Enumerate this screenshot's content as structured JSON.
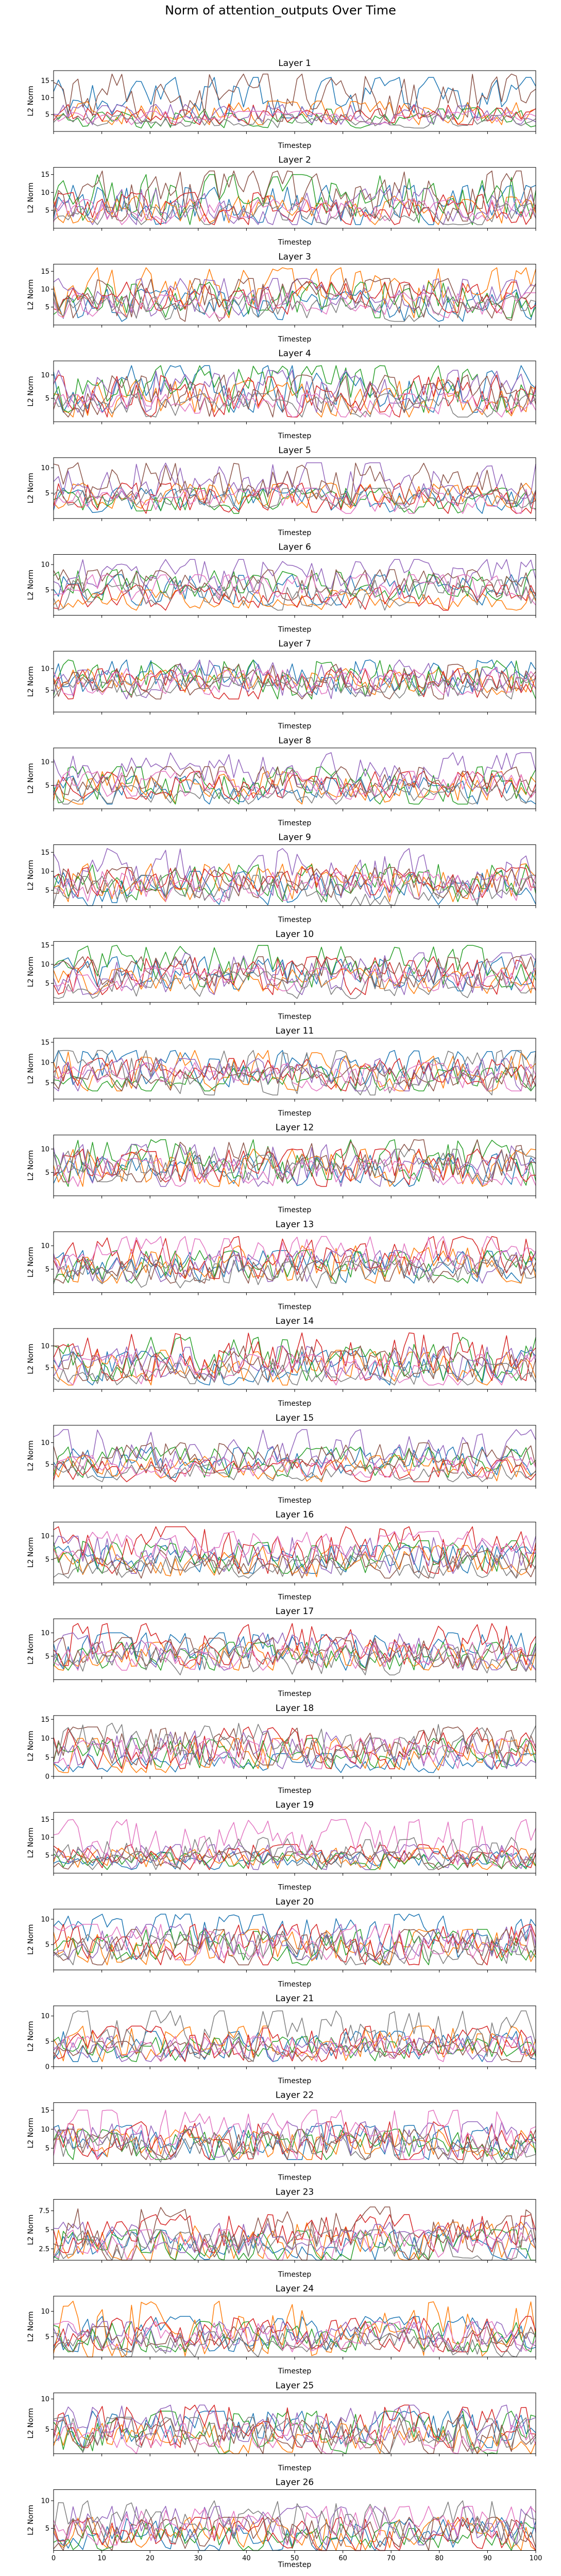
{
  "title": "Norm of attention_outputs Over Time",
  "xlabel": "Timestep",
  "ylabel": "L2 Norm",
  "xticks": [
    0,
    10,
    20,
    30,
    40,
    50,
    60,
    70,
    80,
    90,
    100
  ],
  "colors": [
    "#1f77b4",
    "#ff7f0e",
    "#2ca02c",
    "#d62728",
    "#9467bd",
    "#8c564b",
    "#e377c2",
    "#7f7f7f"
  ],
  "chart_data": [
    {
      "type": "line",
      "title": "Layer 1",
      "xlabel": "Timestep",
      "ylabel": "L2 Norm",
      "xlim": [
        0,
        100
      ],
      "ylim": [
        0,
        18
      ],
      "yticks": [
        5,
        10,
        15
      ],
      "seed": 101,
      "ranges": [
        [
          4,
          16
        ],
        [
          2,
          9
        ],
        [
          1,
          7
        ],
        [
          2,
          8
        ],
        [
          2,
          8
        ],
        [
          3,
          17
        ],
        [
          2,
          6
        ],
        [
          1,
          5
        ]
      ]
    },
    {
      "type": "line",
      "title": "Layer 2",
      "xlabel": "Timestep",
      "ylabel": "L2 Norm",
      "xlim": [
        0,
        100
      ],
      "ylim": [
        0,
        17
      ],
      "yticks": [
        5,
        10,
        15
      ],
      "seed": 102,
      "ranges": [
        [
          1,
          12
        ],
        [
          1,
          9
        ],
        [
          1,
          15
        ],
        [
          1,
          10
        ],
        [
          1,
          11
        ],
        [
          2,
          16
        ],
        [
          1,
          8
        ],
        [
          1,
          7
        ]
      ]
    },
    {
      "type": "line",
      "title": "Layer 3",
      "xlabel": "Timestep",
      "ylabel": "L2 Norm",
      "xlim": [
        0,
        100
      ],
      "ylim": [
        0,
        17
      ],
      "yticks": [
        5,
        10,
        15
      ],
      "seed": 103,
      "ranges": [
        [
          1,
          10
        ],
        [
          2,
          16
        ],
        [
          2,
          12
        ],
        [
          3,
          12
        ],
        [
          2,
          13
        ],
        [
          1,
          13
        ],
        [
          2,
          9
        ],
        [
          1,
          8
        ]
      ]
    },
    {
      "type": "line",
      "title": "Layer 4",
      "xlabel": "Timestep",
      "ylabel": "L2 Norm",
      "xlim": [
        0,
        100
      ],
      "ylim": [
        0,
        13
      ],
      "yticks": [
        5,
        10
      ],
      "seed": 104,
      "ranges": [
        [
          2,
          12
        ],
        [
          1,
          9
        ],
        [
          2,
          12
        ],
        [
          1,
          10
        ],
        [
          2,
          11
        ],
        [
          1,
          10
        ],
        [
          1,
          6
        ],
        [
          1,
          6
        ]
      ]
    },
    {
      "type": "line",
      "title": "Layer 5",
      "xlabel": "Timestep",
      "ylabel": "L2 Norm",
      "xlim": [
        0,
        100
      ],
      "ylim": [
        0,
        12
      ],
      "yticks": [
        5,
        10
      ],
      "seed": 105,
      "ranges": [
        [
          1,
          6
        ],
        [
          2,
          7
        ],
        [
          1,
          6
        ],
        [
          1,
          7
        ],
        [
          4,
          11
        ],
        [
          3,
          11
        ],
        [
          1,
          6
        ],
        [
          2,
          6
        ]
      ]
    },
    {
      "type": "line",
      "title": "Layer 6",
      "xlabel": "Timestep",
      "ylabel": "L2 Norm",
      "xlim": [
        0,
        100
      ],
      "ylim": [
        0,
        12
      ],
      "yticks": [
        5,
        10
      ],
      "seed": 106,
      "ranges": [
        [
          2,
          8
        ],
        [
          1,
          5
        ],
        [
          3,
          9
        ],
        [
          1,
          6
        ],
        [
          4,
          11
        ],
        [
          3,
          9
        ],
        [
          2,
          8
        ],
        [
          1,
          7
        ]
      ]
    },
    {
      "type": "line",
      "title": "Layer 7",
      "xlabel": "Timestep",
      "ylabel": "L2 Norm",
      "xlim": [
        0,
        100
      ],
      "ylim": [
        0,
        14
      ],
      "yticks": [
        5,
        10
      ],
      "seed": 107,
      "ranges": [
        [
          4,
          12
        ],
        [
          4,
          10
        ],
        [
          3,
          12
        ],
        [
          3,
          10
        ],
        [
          3,
          12
        ],
        [
          3,
          11
        ],
        [
          4,
          10
        ],
        [
          3,
          8
        ]
      ]
    },
    {
      "type": "line",
      "title": "Layer 8",
      "xlabel": "Timestep",
      "ylabel": "L2 Norm",
      "xlim": [
        0,
        100
      ],
      "ylim": [
        0,
        13
      ],
      "yticks": [
        5,
        10
      ],
      "seed": 108,
      "ranges": [
        [
          1,
          7
        ],
        [
          1,
          8
        ],
        [
          1,
          9
        ],
        [
          2,
          8
        ],
        [
          4,
          12
        ],
        [
          3,
          9
        ],
        [
          2,
          8
        ],
        [
          1,
          5
        ]
      ]
    },
    {
      "type": "line",
      "title": "Layer 9",
      "xlabel": "Timestep",
      "ylabel": "L2 Norm",
      "xlim": [
        0,
        100
      ],
      "ylim": [
        1,
        17
      ],
      "yticks": [
        5,
        10,
        15
      ],
      "seed": 109,
      "ranges": [
        [
          1,
          10
        ],
        [
          2,
          12
        ],
        [
          2,
          12
        ],
        [
          3,
          11
        ],
        [
          3,
          16
        ],
        [
          3,
          11
        ],
        [
          2,
          10
        ],
        [
          1,
          9
        ]
      ]
    },
    {
      "type": "line",
      "title": "Layer 10",
      "xlabel": "Timestep",
      "ylabel": "L2 Norm",
      "xlim": [
        0,
        100
      ],
      "ylim": [
        0,
        16
      ],
      "yticks": [
        5,
        10,
        15
      ],
      "seed": 110,
      "ranges": [
        [
          3,
          12
        ],
        [
          2,
          9
        ],
        [
          4,
          15
        ],
        [
          2,
          12
        ],
        [
          2,
          13
        ],
        [
          4,
          12
        ],
        [
          3,
          9
        ],
        [
          1,
          8
        ]
      ]
    },
    {
      "type": "line",
      "title": "Layer 11",
      "xlabel": "Timestep",
      "ylabel": "L2 Norm",
      "xlim": [
        0,
        100
      ],
      "ylim": [
        1,
        16
      ],
      "yticks": [
        5,
        10,
        15
      ],
      "seed": 111,
      "ranges": [
        [
          4,
          13
        ],
        [
          3,
          13
        ],
        [
          3,
          9
        ],
        [
          3,
          11
        ],
        [
          3,
          11
        ],
        [
          3,
          9
        ],
        [
          3,
          10
        ],
        [
          2,
          13
        ]
      ]
    },
    {
      "type": "line",
      "title": "Layer 12",
      "xlabel": "Timestep",
      "ylabel": "L2 Norm",
      "xlim": [
        0,
        100
      ],
      "ylim": [
        0,
        13
      ],
      "yticks": [
        5,
        10
      ],
      "seed": 112,
      "ranges": [
        [
          2,
          9
        ],
        [
          2,
          10
        ],
        [
          2,
          12
        ],
        [
          2,
          10
        ],
        [
          2,
          11
        ],
        [
          3,
          12
        ],
        [
          2,
          8
        ],
        [
          3,
          10
        ]
      ]
    },
    {
      "type": "line",
      "title": "Layer 13",
      "xlabel": "Timestep",
      "ylabel": "L2 Norm",
      "xlim": [
        0,
        100
      ],
      "ylim": [
        0,
        13
      ],
      "yticks": [
        5,
        10
      ],
      "seed": 113,
      "ranges": [
        [
          2,
          9
        ],
        [
          2,
          10
        ],
        [
          2,
          9
        ],
        [
          3,
          12
        ],
        [
          2,
          9
        ],
        [
          2,
          8
        ],
        [
          5,
          12
        ],
        [
          1,
          7
        ]
      ]
    },
    {
      "type": "line",
      "title": "Layer 14",
      "xlabel": "Timestep",
      "ylabel": "L2 Norm",
      "xlim": [
        0,
        100
      ],
      "ylim": [
        0,
        14
      ],
      "yticks": [
        5,
        10
      ],
      "seed": 114,
      "ranges": [
        [
          1,
          9
        ],
        [
          1,
          9
        ],
        [
          2,
          12
        ],
        [
          2,
          13
        ],
        [
          2,
          10
        ],
        [
          2,
          10
        ],
        [
          1,
          8
        ],
        [
          1,
          6
        ]
      ]
    },
    {
      "type": "line",
      "title": "Layer 15",
      "xlabel": "Timestep",
      "ylabel": "L2 Norm",
      "xlim": [
        0,
        100
      ],
      "ylim": [
        0,
        14
      ],
      "yticks": [
        5,
        10
      ],
      "seed": 115,
      "ranges": [
        [
          2,
          9
        ],
        [
          1,
          7
        ],
        [
          2,
          9
        ],
        [
          1,
          6
        ],
        [
          4,
          13
        ],
        [
          3,
          10
        ],
        [
          2,
          7
        ],
        [
          1,
          5
        ]
      ]
    },
    {
      "type": "line",
      "title": "Layer 16",
      "xlabel": "Timestep",
      "ylabel": "L2 Norm",
      "xlim": [
        0,
        100
      ],
      "ylim": [
        0,
        13
      ],
      "yticks": [
        5,
        10
      ],
      "seed": 116,
      "ranges": [
        [
          2,
          8
        ],
        [
          1,
          8
        ],
        [
          2,
          9
        ],
        [
          2,
          12
        ],
        [
          2,
          10
        ],
        [
          1,
          7
        ],
        [
          5,
          11
        ],
        [
          1,
          6
        ]
      ]
    },
    {
      "type": "line",
      "title": "Layer 17",
      "xlabel": "Timestep",
      "ylabel": "L2 Norm",
      "xlim": [
        0,
        100
      ],
      "ylim": [
        0,
        13
      ],
      "yticks": [
        5,
        10
      ],
      "seed": 117,
      "ranges": [
        [
          2,
          10
        ],
        [
          2,
          8
        ],
        [
          2,
          8
        ],
        [
          3,
          12
        ],
        [
          2,
          10
        ],
        [
          2,
          9
        ],
        [
          2,
          8
        ],
        [
          1,
          7
        ]
      ]
    },
    {
      "type": "line",
      "title": "Layer 18",
      "xlabel": "Timestep",
      "ylabel": "L2 Norm",
      "xlim": [
        0,
        100
      ],
      "ylim": [
        0,
        16
      ],
      "yticks": [
        0,
        5,
        10,
        15
      ],
      "seed": 118,
      "ranges": [
        [
          1,
          6
        ],
        [
          1,
          10
        ],
        [
          2,
          10
        ],
        [
          2,
          13
        ],
        [
          2,
          12
        ],
        [
          3,
          13
        ],
        [
          2,
          10
        ],
        [
          3,
          14
        ]
      ]
    },
    {
      "type": "line",
      "title": "Layer 19",
      "xlabel": "Timestep",
      "ylabel": "L2 Norm",
      "xlim": [
        0,
        100
      ],
      "ylim": [
        0,
        17
      ],
      "yticks": [
        5,
        10,
        15
      ],
      "seed": 119,
      "ranges": [
        [
          1,
          6
        ],
        [
          1,
          7
        ],
        [
          1,
          6
        ],
        [
          1,
          8
        ],
        [
          1,
          8
        ],
        [
          1,
          6
        ],
        [
          2,
          15
        ],
        [
          1,
          10
        ]
      ]
    },
    {
      "type": "line",
      "title": "Layer 20",
      "xlabel": "Timestep",
      "ylabel": "L2 Norm",
      "xlim": [
        0,
        100
      ],
      "ylim": [
        0,
        12
      ],
      "yticks": [
        5,
        10
      ],
      "seed": 120,
      "ranges": [
        [
          2,
          11
        ],
        [
          1,
          8
        ],
        [
          1,
          8
        ],
        [
          1,
          9
        ],
        [
          2,
          9
        ],
        [
          1,
          8
        ],
        [
          2,
          9
        ],
        [
          1,
          7
        ]
      ]
    },
    {
      "type": "line",
      "title": "Layer 21",
      "xlabel": "Timestep",
      "ylabel": "L2 Norm",
      "xlim": [
        0,
        100
      ],
      "ylim": [
        0,
        12
      ],
      "yticks": [
        0,
        5,
        10
      ],
      "seed": 121,
      "ranges": [
        [
          1,
          7
        ],
        [
          1,
          8
        ],
        [
          1,
          6
        ],
        [
          1,
          8
        ],
        [
          1,
          6
        ],
        [
          1,
          5
        ],
        [
          1,
          6
        ],
        [
          1,
          11
        ]
      ]
    },
    {
      "type": "line",
      "title": "Layer 22",
      "xlabel": "Timestep",
      "ylabel": "L2 Norm",
      "xlim": [
        0,
        100
      ],
      "ylim": [
        1,
        17
      ],
      "yticks": [
        5,
        10,
        15
      ],
      "seed": 122,
      "ranges": [
        [
          2,
          11
        ],
        [
          2,
          10
        ],
        [
          2,
          10
        ],
        [
          2,
          12
        ],
        [
          2,
          12
        ],
        [
          2,
          10
        ],
        [
          2,
          15
        ],
        [
          1,
          9
        ]
      ]
    },
    {
      "type": "line",
      "title": "Layer 23",
      "xlabel": "Timestep",
      "ylabel": "L2 Norm",
      "xlim": [
        0,
        100
      ],
      "ylim": [
        1,
        9
      ],
      "yticks": [
        2.5,
        5.0,
        7.5
      ],
      "seed": 123,
      "ranges": [
        [
          1,
          5
        ],
        [
          1,
          6
        ],
        [
          1,
          5
        ],
        [
          2,
          7
        ],
        [
          2,
          6
        ],
        [
          1,
          8
        ],
        [
          1,
          5
        ],
        [
          1,
          5
        ]
      ]
    },
    {
      "type": "line",
      "title": "Layer 24",
      "xlabel": "Timestep",
      "ylabel": "L2 Norm",
      "xlim": [
        0,
        100
      ],
      "ylim": [
        1,
        13
      ],
      "yticks": [
        5,
        10
      ],
      "seed": 124,
      "ranges": [
        [
          2,
          9
        ],
        [
          1,
          12
        ],
        [
          2,
          8
        ],
        [
          2,
          9
        ],
        [
          2,
          8
        ],
        [
          2,
          7
        ],
        [
          2,
          8
        ],
        [
          1,
          6
        ]
      ]
    },
    {
      "type": "line",
      "title": "Layer 25",
      "xlabel": "Timestep",
      "ylabel": "L2 Norm",
      "xlim": [
        0,
        100
      ],
      "ylim": [
        1,
        11
      ],
      "yticks": [
        5,
        10
      ],
      "seed": 125,
      "ranges": [
        [
          2,
          8
        ],
        [
          1,
          6
        ],
        [
          1,
          8
        ],
        [
          2,
          9
        ],
        [
          3,
          9
        ],
        [
          1,
          7
        ],
        [
          1,
          6
        ],
        [
          1,
          7
        ]
      ]
    },
    {
      "type": "line",
      "title": "Layer 26",
      "xlabel": "Timestep",
      "ylabel": "L2 Norm",
      "xlim": [
        0,
        100
      ],
      "ylim": [
        1,
        12
      ],
      "yticks": [
        5,
        10
      ],
      "seed": 126,
      "ranges": [
        [
          1,
          7
        ],
        [
          1,
          7
        ],
        [
          1,
          6
        ],
        [
          1,
          7
        ],
        [
          2,
          9
        ],
        [
          1,
          7
        ],
        [
          2,
          9
        ],
        [
          2,
          10
        ]
      ]
    }
  ]
}
